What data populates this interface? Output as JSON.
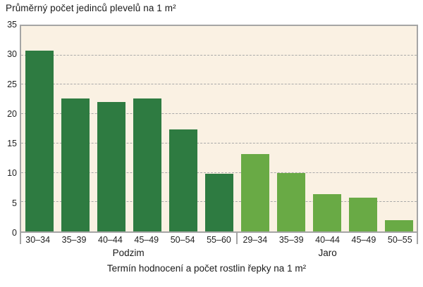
{
  "chart_data": {
    "type": "bar",
    "title": "Průměrný počet jedinců plevelů na 1 m²",
    "xlabel": "Termín hodnocení a počet rostlin řepky na 1 m²",
    "ylabel": "",
    "ylim": [
      0,
      35
    ],
    "yticks": [
      0,
      5,
      10,
      15,
      20,
      25,
      30,
      35
    ],
    "grid": "horizontal dashed lines at each y tick",
    "legend": "none",
    "groups": [
      {
        "label": "Podzim",
        "color": "#2e7b41",
        "categories": [
          "30–34",
          "35–39",
          "40–44",
          "45–49",
          "50–54",
          "55–60"
        ],
        "values": [
          30.8,
          22.6,
          22.1,
          22.7,
          17.4,
          9.8
        ]
      },
      {
        "label": "Jaro",
        "color": "#69aa45",
        "categories": [
          "29–34",
          "35–39",
          "40–44",
          "45–49",
          "50–55"
        ],
        "values": [
          13.2,
          9.9,
          6.3,
          5.7,
          1.9
        ]
      }
    ],
    "colors": {
      "plot_background": "#faf1e3",
      "plot_border": "#a5a5a5",
      "gridline": "#a9a9a9",
      "text": "#1a1a1a"
    }
  }
}
